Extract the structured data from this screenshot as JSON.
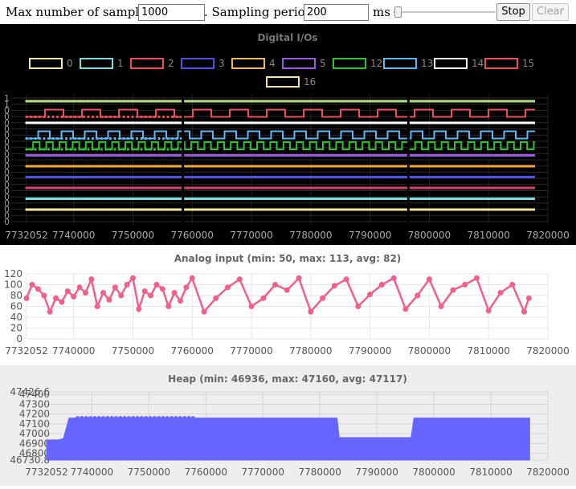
{
  "toolbar": {
    "max_samples_label": "Max number of samples:",
    "max_samples_value": "1000",
    "sampling_label": ". Sampling period:",
    "sampling_value": "200",
    "unit": "ms",
    "stop_label": "Stop",
    "clear_label": "Clear"
  },
  "x_ticks": [
    "7732052",
    "7740000",
    "7750000",
    "7760000",
    "7770000",
    "7780000",
    "7790000",
    "7800000",
    "7810000",
    "7820000"
  ],
  "x_tick_values": [
    7732052,
    7740000,
    7750000,
    7760000,
    7770000,
    7780000,
    7790000,
    7800000,
    7810000,
    7820000
  ],
  "chart_data": [
    {
      "type": "line",
      "title": "Digital I/Os",
      "background": "#000000",
      "xlim": [
        7732052,
        7820000
      ],
      "legend": [
        {
          "name": "0",
          "color": "#f5e89a"
        },
        {
          "name": "1",
          "color": "#78e0e0"
        },
        {
          "name": "2",
          "color": "#ef4d5b"
        },
        {
          "name": "3",
          "color": "#5050e6"
        },
        {
          "name": "4",
          "color": "#f5b75a"
        },
        {
          "name": "5",
          "color": "#9b59e0"
        },
        {
          "name": "12",
          "color": "#2ec22e"
        },
        {
          "name": "13",
          "color": "#59b8f5"
        },
        {
          "name": "14",
          "color": "#ffffff"
        },
        {
          "name": "15",
          "color": "#ef4d5b"
        },
        {
          "name": "16",
          "color": "#f5e89a"
        }
      ],
      "lane_labels": [
        "1",
        "1",
        "0",
        "0",
        "0",
        "0",
        "0",
        "0",
        "0",
        "0",
        "0",
        "0",
        "0",
        "0",
        "0",
        "0",
        "0",
        "0",
        "0",
        "0",
        "0"
      ],
      "series_levels": [
        {
          "name": "0",
          "lane": 0,
          "color": "#b8e08a"
        },
        {
          "name": "2",
          "lane": 1,
          "color": "#ef4d5b",
          "pattern": "square"
        },
        {
          "name": "14",
          "lane": 2,
          "color": "#ffffff"
        },
        {
          "name": "13",
          "lane": 3,
          "color": "#59b8f5",
          "pattern": "square"
        },
        {
          "name": "12",
          "lane": 4,
          "color": "#2ec22e",
          "pattern": "square"
        },
        {
          "name": "5",
          "lane": 5,
          "color": "#9b59e0"
        },
        {
          "name": "4",
          "lane": 6,
          "color": "#f5a830"
        },
        {
          "name": "3",
          "lane": 7,
          "color": "#5050e6"
        },
        {
          "name": "15",
          "lane": 8,
          "color": "#d9456e"
        },
        {
          "name": "1",
          "lane": 9,
          "color": "#78e0e0"
        },
        {
          "name": "16",
          "lane": 10,
          "color": "#f5e89a"
        }
      ]
    },
    {
      "type": "line",
      "title": "Analog input (min: 50, max: 113, avg: 82)",
      "color": "#f0608a",
      "ylim": [
        0,
        120
      ],
      "y_ticks": [
        "0",
        "20",
        "40",
        "60",
        "80",
        "100",
        "120"
      ],
      "xlim": [
        7732052,
        7820000
      ],
      "x": [
        7732052,
        7733000,
        7734000,
        7735000,
        7736000,
        7737000,
        7738000,
        7739000,
        7740000,
        7741000,
        7742000,
        7743000,
        7744000,
        7745000,
        7746000,
        7747000,
        7748000,
        7749000,
        7750000,
        7751000,
        7752000,
        7753000,
        7754000,
        7755000,
        7756000,
        7757000,
        7758000,
        7759000,
        7760000,
        7762000,
        7764000,
        7766000,
        7768000,
        7770000,
        7772000,
        7774000,
        7776000,
        7778000,
        7780000,
        7782000,
        7784000,
        7786000,
        7788000,
        7790000,
        7792000,
        7794000,
        7796000,
        7798000,
        7800000,
        7802000,
        7804000,
        7806000,
        7808000,
        7810000,
        7812000,
        7814000,
        7816000,
        7816800
      ],
      "y": [
        75,
        100,
        92,
        80,
        50,
        75,
        68,
        88,
        78,
        95,
        85,
        110,
        60,
        85,
        72,
        95,
        80,
        100,
        112,
        55,
        88,
        80,
        100,
        92,
        60,
        85,
        70,
        95,
        112,
        50,
        75,
        95,
        110,
        60,
        75,
        100,
        90,
        112,
        50,
        75,
        98,
        110,
        60,
        82,
        100,
        112,
        55,
        80,
        110,
        60,
        90,
        100,
        112,
        52,
        85,
        100,
        50,
        75
      ]
    },
    {
      "type": "area",
      "title": "Heap (min: 46936, max: 47160, avg: 47117)",
      "color": "#6666ff",
      "background": "#eeeeee",
      "ylim": [
        46730.8,
        47426.6
      ],
      "y_ticks": [
        "46730.8",
        "46800",
        "46900",
        "47000",
        "47100",
        "47200",
        "47300",
        "47400",
        "47426.6"
      ],
      "xlim": [
        7732052,
        7820000
      ],
      "x": [
        7732052,
        7734000,
        7735000,
        7736000,
        7736800,
        7737500,
        7750000,
        7751000,
        7783000,
        7783400,
        7796000,
        7796500,
        7816800
      ],
      "y": [
        46936,
        46936,
        46950,
        47160,
        47160,
        47160,
        47160,
        47160,
        47160,
        46960,
        46960,
        47160,
        47160
      ]
    }
  ]
}
